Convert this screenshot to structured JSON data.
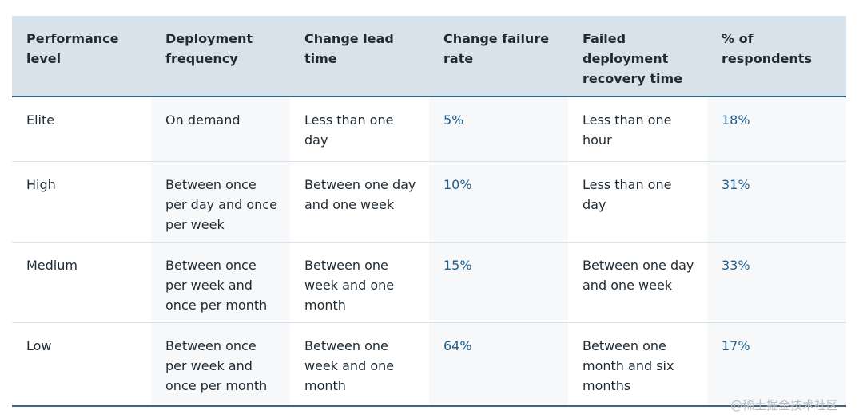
{
  "table": {
    "header": [
      "Performance level",
      "Deployment frequency",
      "Change lead time",
      "Change failure rate",
      "Failed deployment recovery time",
      "% of respondents"
    ],
    "rows": [
      [
        "Elite",
        "On demand",
        "Less than one day",
        "5%",
        "Less than one hour",
        "18%"
      ],
      [
        "High",
        "Between once per day and once per week",
        "Between one day and one week",
        "10%",
        "Less than one day",
        "31%"
      ],
      [
        "Medium",
        "Between once per week and once per month",
        "Between one week and one month",
        "15%",
        "Between one day and one week",
        "33%"
      ],
      [
        "Low",
        "Between once per week and once per month",
        "Between one week and one month",
        "64%",
        "Between one month and six months",
        "17%"
      ]
    ]
  },
  "watermark": "@稀土掘金技术社区"
}
